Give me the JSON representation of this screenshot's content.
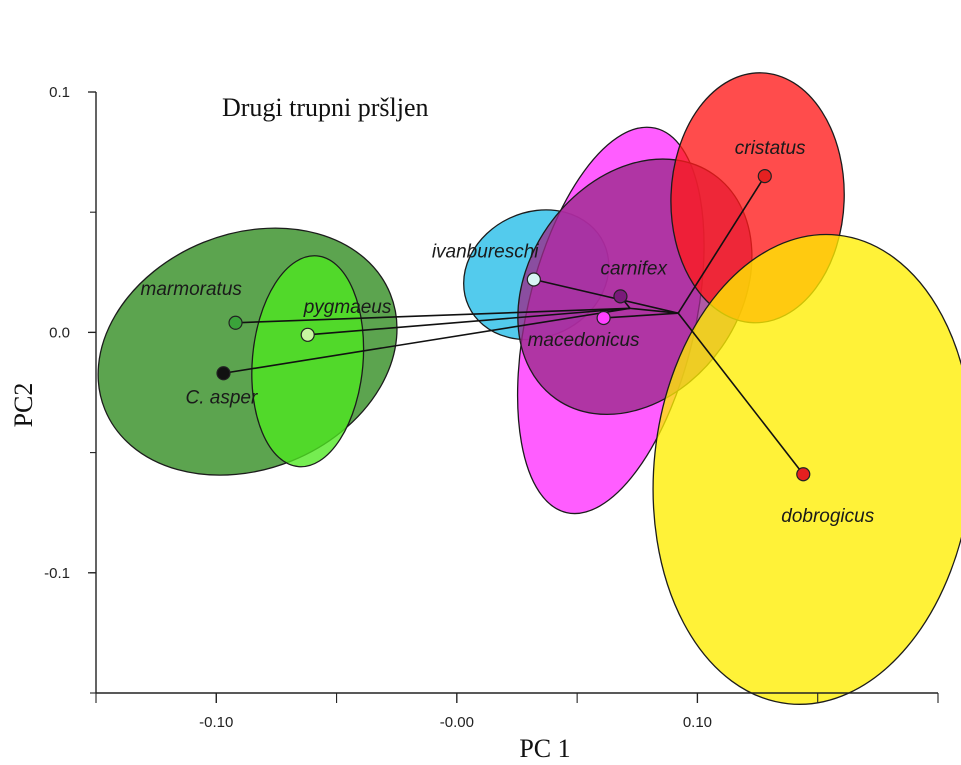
{
  "chart_data": {
    "type": "scatter",
    "title": "Drugi trupni pršljen",
    "xlabel": "PC 1",
    "ylabel": "PC2",
    "xlim": [
      -0.15,
      0.2
    ],
    "ylim": [
      -0.15,
      0.1
    ],
    "x_ticks": [
      -0.1,
      0.0,
      0.1
    ],
    "x_tick_labels": [
      "-0.10",
      "-0.00",
      "0.10"
    ],
    "y_ticks": [
      -0.1,
      0.0,
      0.1
    ],
    "y_tick_labels": [
      "-0.1",
      "0.0",
      "0.1"
    ],
    "grid": false,
    "points": [
      {
        "label": "marmoratus",
        "x": -0.092,
        "y": 0.004,
        "color": "#3aa33a"
      },
      {
        "label": "pygmaeus",
        "x": -0.062,
        "y": -0.001,
        "color": "#c8f5a0"
      },
      {
        "label": "C. asper",
        "x": -0.097,
        "y": -0.017,
        "color": "#111111"
      },
      {
        "label": "ivanbureschi",
        "x": 0.032,
        "y": 0.022,
        "color": "#d8f5f5"
      },
      {
        "label": "carnifex",
        "x": 0.068,
        "y": 0.015,
        "color": "#7a1a7a"
      },
      {
        "label": "macedonicus",
        "x": 0.061,
        "y": 0.006,
        "color": "#ff40ff"
      },
      {
        "label": "cristatus",
        "x": 0.128,
        "y": 0.065,
        "color": "#e62020"
      },
      {
        "label": "dobrogicus",
        "x": 0.144,
        "y": -0.059,
        "color": "#e62020"
      }
    ],
    "ellipses": [
      {
        "group": "marmoratus",
        "cx": -0.087,
        "cy": -0.008,
        "rx": 0.064,
        "ry": 0.049,
        "angle": -22,
        "color": "#2e8b1e"
      },
      {
        "group": "pygmaeus",
        "cx": -0.062,
        "cy": -0.012,
        "rx": 0.023,
        "ry": 0.044,
        "angle": 5,
        "color": "#4ee820"
      },
      {
        "group": "ivanbureschi",
        "cx": 0.033,
        "cy": 0.024,
        "rx": 0.031,
        "ry": 0.026,
        "angle": -25,
        "color": "#22bde8"
      },
      {
        "group": "macedonicus",
        "cx": 0.064,
        "cy": 0.005,
        "rx": 0.082,
        "ry": 0.035,
        "angle": -77,
        "color": "#ff30ff"
      },
      {
        "group": "carnifex",
        "cx": 0.074,
        "cy": 0.019,
        "rx": 0.057,
        "ry": 0.044,
        "angle": -55,
        "color": "#9a2a8a"
      },
      {
        "group": "cristatus",
        "cx": 0.125,
        "cy": 0.056,
        "rx": 0.036,
        "ry": 0.052,
        "angle": 2,
        "color": "#ff1a1a"
      },
      {
        "group": "dobrogicus",
        "cx": 0.148,
        "cy": -0.057,
        "rx": 0.066,
        "ry": 0.098,
        "angle": 6,
        "color": "#ffee00"
      }
    ],
    "tree": {
      "nodes": {
        "n1": {
          "x": 0.072,
          "y": 0.01
        },
        "n2": {
          "x": 0.092,
          "y": 0.008
        }
      },
      "edges": [
        [
          "marmoratus",
          "n1"
        ],
        [
          "pygmaeus",
          "n1"
        ],
        [
          "C. asper",
          "n1"
        ],
        [
          "carnifex",
          "n1"
        ],
        [
          "ivanbureschi",
          "n2"
        ],
        [
          "cristatus",
          "n2"
        ],
        [
          "dobrogicus",
          "n2"
        ],
        [
          "macedonicus",
          "n2"
        ],
        [
          "n1",
          "n2"
        ]
      ]
    }
  }
}
